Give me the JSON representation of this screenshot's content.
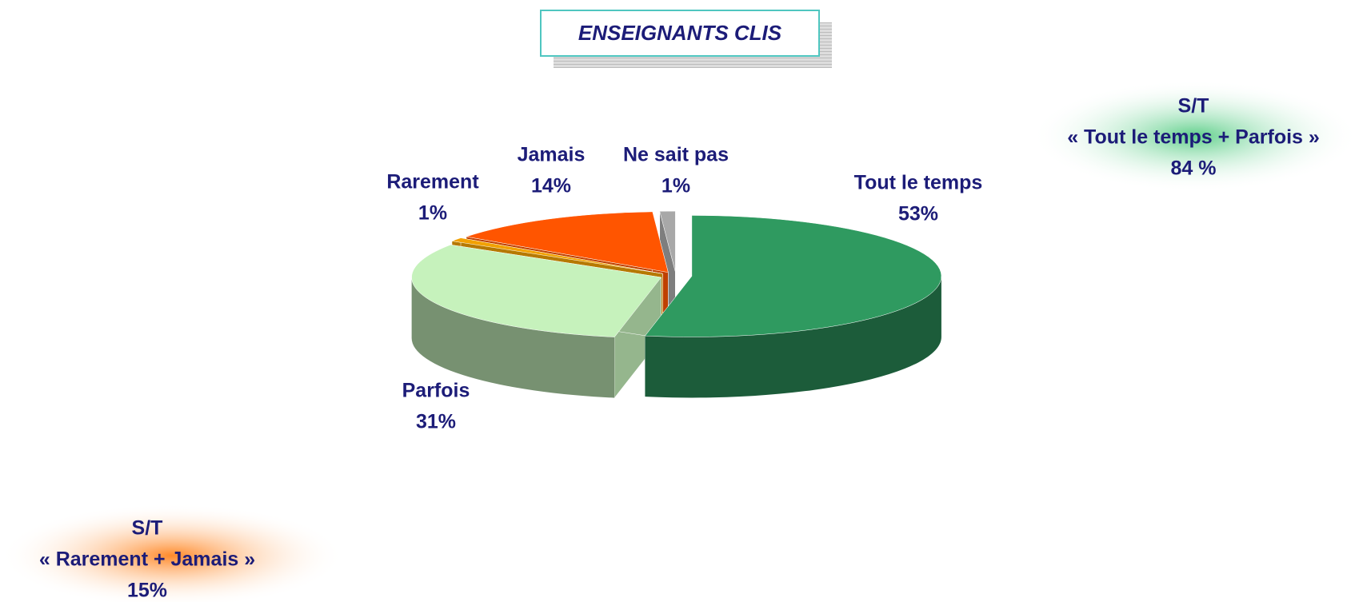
{
  "chart_data": {
    "type": "pie3d",
    "title": "ENSEIGNANTS CLIS",
    "categories": [
      "Tout le temps",
      "Parfois",
      "Rarement",
      "Jamais",
      "Ne sait pas"
    ],
    "values": [
      53,
      31,
      1,
      14,
      1
    ],
    "value_labels": [
      "53%",
      "31%",
      "1%",
      "14%",
      "1%"
    ],
    "colors": [
      "#2f9a60",
      "#c6f2bc",
      "#f2a100",
      "#ff5500",
      "#a8a8a8"
    ],
    "annotations": [
      {
        "lines": [
          "S/T",
          "« Tout le temps + Parfois »",
          "84 %"
        ],
        "color": "#5fcf8a"
      },
      {
        "lines": [
          "S/T",
          "« Rarement + Jamais »",
          "15%"
        ],
        "color": "#ff8a2a"
      }
    ]
  }
}
